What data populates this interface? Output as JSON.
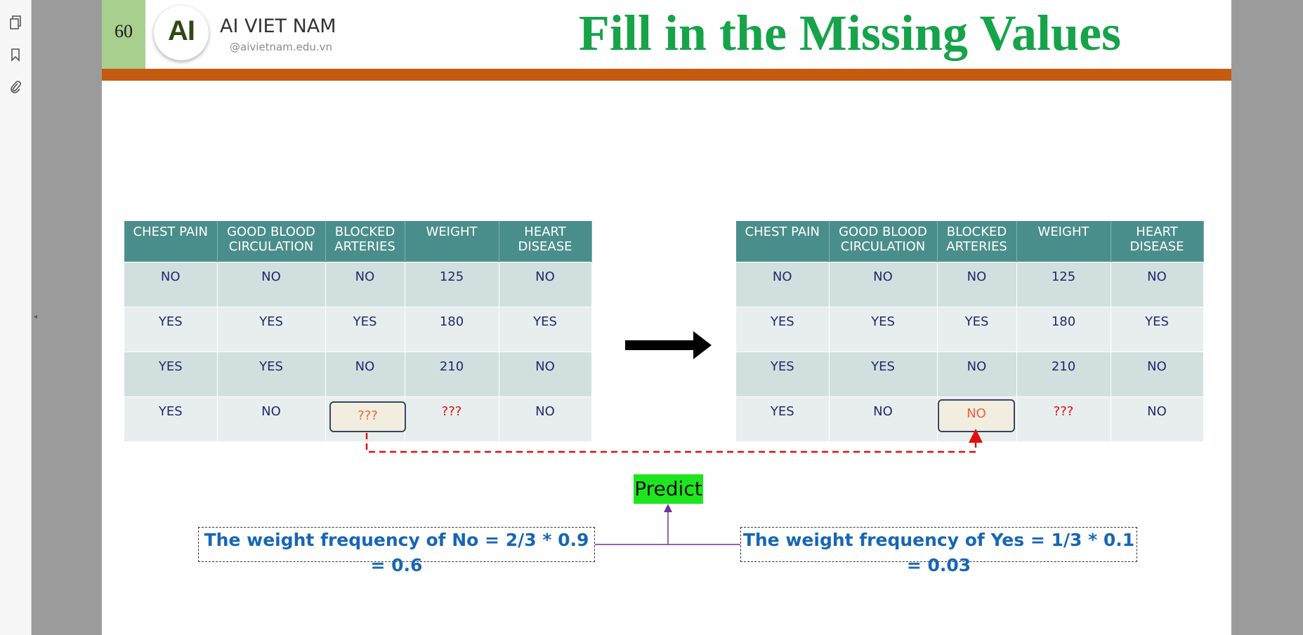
{
  "sidebar": {
    "icons": [
      "pages-icon",
      "bookmark-icon",
      "attachment-icon"
    ],
    "collapse": "◂"
  },
  "slide": {
    "page_number": "60",
    "logo_text": "AI",
    "brand_name": "AI VIET NAM",
    "brand_handle": "@aivietnam.edu.vn",
    "title": "Fill in the Missing Values",
    "colors": {
      "title": "#16a34a",
      "bar": "#c55a11",
      "table_header": "#4a8e8c",
      "predict_bg": "#1ee61e",
      "formula_text": "#1766b5",
      "missing": "#e01010"
    }
  },
  "table_left": {
    "headers": [
      "CHEST PAIN",
      "GOOD BLOOD CIRCULATION",
      "BLOCKED ARTERIES",
      "WEIGHT",
      "HEART DISEASE"
    ],
    "rows": [
      [
        "NO",
        "NO",
        "NO",
        "125",
        "NO"
      ],
      [
        "YES",
        "YES",
        "YES",
        "180",
        "YES"
      ],
      [
        "YES",
        "YES",
        "NO",
        "210",
        "NO"
      ],
      [
        "YES",
        "NO",
        "???",
        "???",
        "NO"
      ]
    ]
  },
  "table_right": {
    "headers": [
      "CHEST PAIN",
      "GOOD BLOOD CIRCULATION",
      "BLOCKED ARTERIES",
      "WEIGHT",
      "HEART DISEASE"
    ],
    "rows": [
      [
        "NO",
        "NO",
        "NO",
        "125",
        "NO"
      ],
      [
        "YES",
        "YES",
        "YES",
        "180",
        "YES"
      ],
      [
        "YES",
        "YES",
        "NO",
        "210",
        "NO"
      ],
      [
        "YES",
        "NO",
        "NO",
        "???",
        "NO"
      ]
    ]
  },
  "predict_label": "Predict",
  "formula_no": "The weight frequency of No = 2/3 * 0.9 = 0.6",
  "formula_yes": "The weight frequency of Yes = 1/3 * 0.1 = 0.03"
}
